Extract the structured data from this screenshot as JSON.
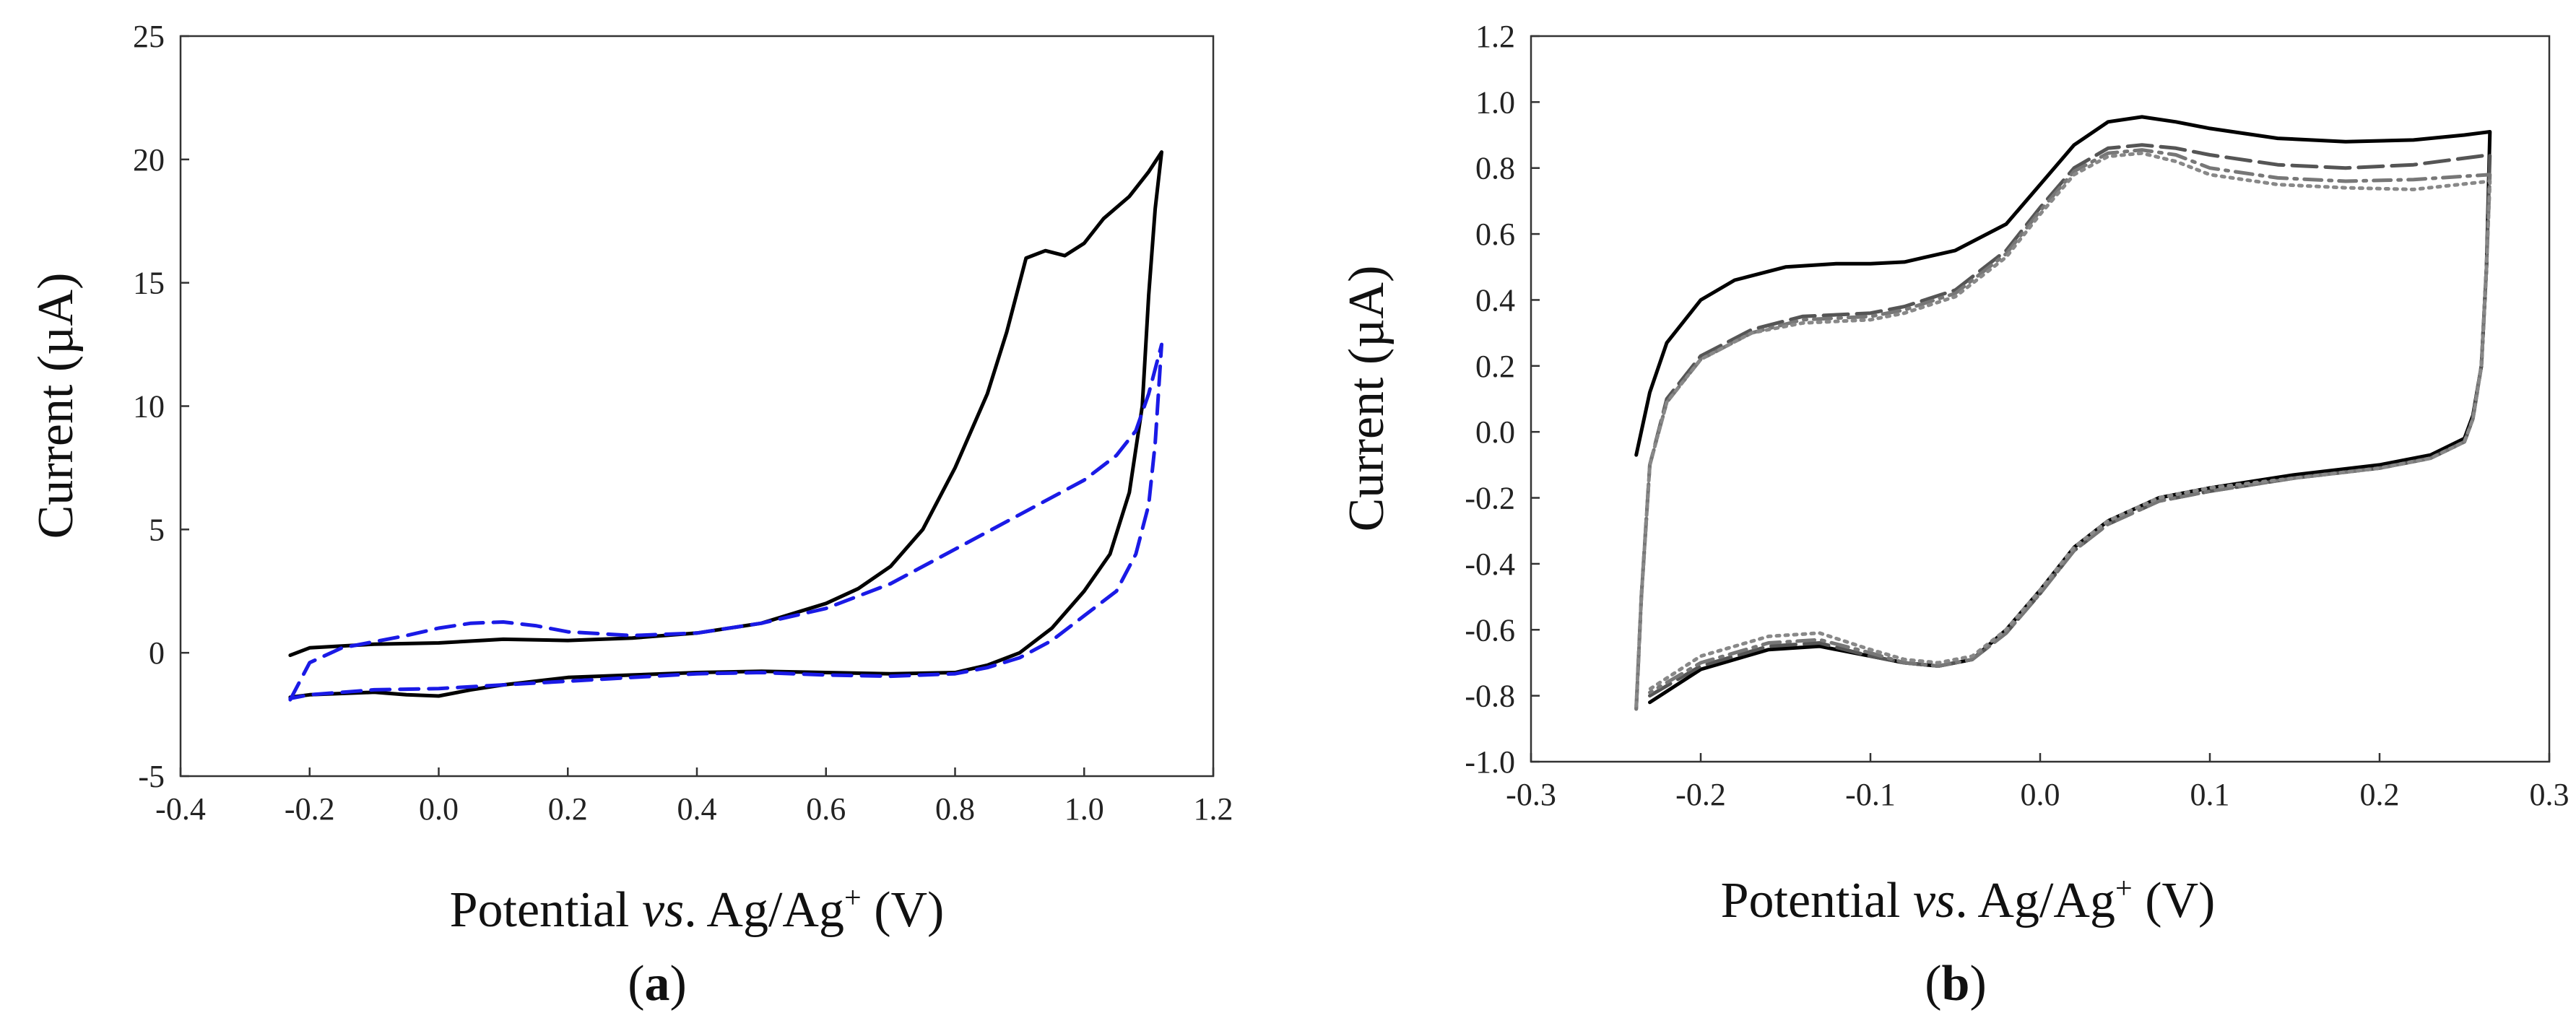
{
  "chart_data": [
    {
      "type": "line",
      "panel_label": "a",
      "ylabel": "Current (µA)",
      "xlabel_parts": [
        "Potential ",
        "vs",
        ". Ag/Ag",
        "+",
        " (V)"
      ],
      "xlim": [
        -0.4,
        1.2
      ],
      "ylim": [
        -5,
        25
      ],
      "xticks": [
        "-0.4",
        "-0.2",
        "0.0",
        "0.2",
        "0.4",
        "0.6",
        "0.8",
        "1.0",
        "1.2"
      ],
      "yticks": [
        "-5",
        "0",
        "5",
        "10",
        "15",
        "20",
        "25"
      ],
      "series": [
        {
          "name": "solid",
          "color": "#000000",
          "style": "solid",
          "points": [
            [
              -0.23,
              -0.1
            ],
            [
              -0.2,
              0.2
            ],
            [
              -0.1,
              0.35
            ],
            [
              0.0,
              0.4
            ],
            [
              0.1,
              0.55
            ],
            [
              0.2,
              0.5
            ],
            [
              0.3,
              0.6
            ],
            [
              0.4,
              0.8
            ],
            [
              0.5,
              1.2
            ],
            [
              0.6,
              2.0
            ],
            [
              0.65,
              2.6
            ],
            [
              0.7,
              3.5
            ],
            [
              0.75,
              5.0
            ],
            [
              0.8,
              7.5
            ],
            [
              0.85,
              10.5
            ],
            [
              0.88,
              13.0
            ],
            [
              0.91,
              16.0
            ],
            [
              0.94,
              16.3
            ],
            [
              0.97,
              16.1
            ],
            [
              1.0,
              16.6
            ],
            [
              1.03,
              17.6
            ],
            [
              1.07,
              18.5
            ],
            [
              1.1,
              19.5
            ],
            [
              1.12,
              20.3
            ],
            [
              1.11,
              18.0
            ],
            [
              1.1,
              14.5
            ],
            [
              1.09,
              10.0
            ],
            [
              1.07,
              6.5
            ],
            [
              1.04,
              4.0
            ],
            [
              1.0,
              2.5
            ],
            [
              0.95,
              1.0
            ],
            [
              0.9,
              0.0
            ],
            [
              0.85,
              -0.5
            ],
            [
              0.8,
              -0.8
            ],
            [
              0.7,
              -0.85
            ],
            [
              0.6,
              -0.8
            ],
            [
              0.5,
              -0.75
            ],
            [
              0.4,
              -0.8
            ],
            [
              0.3,
              -0.9
            ],
            [
              0.2,
              -1.0
            ],
            [
              0.1,
              -1.3
            ],
            [
              0.05,
              -1.5
            ],
            [
              0.0,
              -1.75
            ],
            [
              -0.05,
              -1.7
            ],
            [
              -0.1,
              -1.6
            ],
            [
              -0.2,
              -1.7
            ],
            [
              -0.23,
              -1.8
            ]
          ]
        },
        {
          "name": "dashed",
          "color": "#1a1ae6",
          "style": "dashed",
          "points": [
            [
              -0.23,
              -1.9
            ],
            [
              -0.2,
              -0.4
            ],
            [
              -0.15,
              0.2
            ],
            [
              -0.1,
              0.45
            ],
            [
              -0.05,
              0.7
            ],
            [
              0.0,
              1.0
            ],
            [
              0.05,
              1.2
            ],
            [
              0.1,
              1.25
            ],
            [
              0.15,
              1.1
            ],
            [
              0.2,
              0.85
            ],
            [
              0.3,
              0.7
            ],
            [
              0.4,
              0.8
            ],
            [
              0.5,
              1.2
            ],
            [
              0.6,
              1.8
            ],
            [
              0.7,
              2.8
            ],
            [
              0.8,
              4.2
            ],
            [
              0.9,
              5.6
            ],
            [
              1.0,
              7.0
            ],
            [
              1.05,
              8.0
            ],
            [
              1.08,
              9.0
            ],
            [
              1.1,
              10.5
            ],
            [
              1.12,
              12.5
            ],
            [
              1.11,
              8.5
            ],
            [
              1.1,
              6.0
            ],
            [
              1.08,
              4.0
            ],
            [
              1.05,
              2.5
            ],
            [
              1.0,
              1.5
            ],
            [
              0.95,
              0.5
            ],
            [
              0.9,
              -0.2
            ],
            [
              0.85,
              -0.6
            ],
            [
              0.8,
              -0.85
            ],
            [
              0.7,
              -0.95
            ],
            [
              0.6,
              -0.9
            ],
            [
              0.5,
              -0.8
            ],
            [
              0.4,
              -0.85
            ],
            [
              0.3,
              -1.0
            ],
            [
              0.2,
              -1.15
            ],
            [
              0.1,
              -1.3
            ],
            [
              0.0,
              -1.45
            ],
            [
              -0.1,
              -1.5
            ],
            [
              -0.2,
              -1.7
            ],
            [
              -0.23,
              -1.85
            ]
          ]
        }
      ]
    },
    {
      "type": "line",
      "panel_label": "b",
      "ylabel": "Current (µA)",
      "xlabel_parts": [
        "Potential ",
        "vs",
        ". Ag/Ag",
        "+",
        " (V)"
      ],
      "xlim": [
        -0.3,
        0.3
      ],
      "ylim": [
        -1.0,
        1.2
      ],
      "xticks": [
        "-0.3",
        "-0.2",
        "-0.1",
        "0.0",
        "0.1",
        "0.2",
        "0.3"
      ],
      "yticks": [
        "-1.0",
        "-0.8",
        "-0.6",
        "-0.4",
        "-0.2",
        "0.0",
        "0.2",
        "0.4",
        "0.6",
        "0.8",
        "1.0",
        "1.2"
      ],
      "series": [
        {
          "name": "solid",
          "color": "#000000",
          "style": "solid",
          "points": [
            [
              -0.238,
              -0.07
            ],
            [
              -0.23,
              0.12
            ],
            [
              -0.22,
              0.27
            ],
            [
              -0.2,
              0.4
            ],
            [
              -0.18,
              0.46
            ],
            [
              -0.15,
              0.5
            ],
            [
              -0.12,
              0.51
            ],
            [
              -0.1,
              0.51
            ],
            [
              -0.08,
              0.515
            ],
            [
              -0.05,
              0.55
            ],
            [
              -0.02,
              0.63
            ],
            [
              0.0,
              0.75
            ],
            [
              0.02,
              0.87
            ],
            [
              0.04,
              0.94
            ],
            [
              0.06,
              0.955
            ],
            [
              0.08,
              0.94
            ],
            [
              0.1,
              0.92
            ],
            [
              0.14,
              0.89
            ],
            [
              0.18,
              0.88
            ],
            [
              0.22,
              0.885
            ],
            [
              0.25,
              0.9
            ],
            [
              0.265,
              0.91
            ],
            [
              0.263,
              0.5
            ],
            [
              0.26,
              0.2
            ],
            [
              0.255,
              0.05
            ],
            [
              0.25,
              -0.02
            ],
            [
              0.23,
              -0.07
            ],
            [
              0.2,
              -0.1
            ],
            [
              0.15,
              -0.13
            ],
            [
              0.1,
              -0.17
            ],
            [
              0.07,
              -0.2
            ],
            [
              0.04,
              -0.27
            ],
            [
              0.02,
              -0.35
            ],
            [
              0.0,
              -0.48
            ],
            [
              -0.02,
              -0.6
            ],
            [
              -0.04,
              -0.69
            ],
            [
              -0.06,
              -0.71
            ],
            [
              -0.08,
              -0.7
            ],
            [
              -0.1,
              -0.68
            ],
            [
              -0.13,
              -0.65
            ],
            [
              -0.16,
              -0.66
            ],
            [
              -0.2,
              -0.72
            ],
            [
              -0.23,
              -0.82
            ]
          ]
        },
        {
          "name": "long-dash",
          "color": "#555555",
          "style": "longdash",
          "points": [
            [
              -0.238,
              -0.84
            ],
            [
              -0.235,
              -0.5
            ],
            [
              -0.23,
              -0.1
            ],
            [
              -0.22,
              0.1
            ],
            [
              -0.2,
              0.23
            ],
            [
              -0.17,
              0.31
            ],
            [
              -0.14,
              0.35
            ],
            [
              -0.1,
              0.36
            ],
            [
              -0.08,
              0.38
            ],
            [
              -0.05,
              0.43
            ],
            [
              -0.02,
              0.55
            ],
            [
              0.0,
              0.68
            ],
            [
              0.02,
              0.8
            ],
            [
              0.04,
              0.86
            ],
            [
              0.06,
              0.87
            ],
            [
              0.08,
              0.86
            ],
            [
              0.1,
              0.84
            ],
            [
              0.14,
              0.81
            ],
            [
              0.18,
              0.8
            ],
            [
              0.22,
              0.81
            ],
            [
              0.265,
              0.84
            ],
            [
              0.263,
              0.5
            ],
            [
              0.26,
              0.2
            ],
            [
              0.255,
              0.04
            ],
            [
              0.25,
              -0.03
            ],
            [
              0.23,
              -0.08
            ],
            [
              0.2,
              -0.11
            ],
            [
              0.15,
              -0.14
            ],
            [
              0.1,
              -0.18
            ],
            [
              0.07,
              -0.21
            ],
            [
              0.04,
              -0.28
            ],
            [
              0.02,
              -0.36
            ],
            [
              0.0,
              -0.49
            ],
            [
              -0.02,
              -0.61
            ],
            [
              -0.04,
              -0.69
            ],
            [
              -0.06,
              -0.71
            ],
            [
              -0.08,
              -0.7
            ],
            [
              -0.1,
              -0.68
            ],
            [
              -0.13,
              -0.64
            ],
            [
              -0.16,
              -0.65
            ],
            [
              -0.2,
              -0.71
            ],
            [
              -0.23,
              -0.8
            ]
          ]
        },
        {
          "name": "dash-dot",
          "color": "#777777",
          "style": "dashdot",
          "points": [
            [
              -0.238,
              -0.84
            ],
            [
              -0.235,
              -0.5
            ],
            [
              -0.23,
              -0.1
            ],
            [
              -0.22,
              0.09
            ],
            [
              -0.2,
              0.22
            ],
            [
              -0.17,
              0.3
            ],
            [
              -0.14,
              0.34
            ],
            [
              -0.1,
              0.35
            ],
            [
              -0.08,
              0.37
            ],
            [
              -0.05,
              0.42
            ],
            [
              -0.02,
              0.54
            ],
            [
              0.0,
              0.67
            ],
            [
              0.02,
              0.79
            ],
            [
              0.04,
              0.845
            ],
            [
              0.06,
              0.855
            ],
            [
              0.08,
              0.84
            ],
            [
              0.1,
              0.8
            ],
            [
              0.14,
              0.77
            ],
            [
              0.18,
              0.76
            ],
            [
              0.22,
              0.765
            ],
            [
              0.265,
              0.78
            ],
            [
              0.263,
              0.5
            ],
            [
              0.26,
              0.2
            ],
            [
              0.255,
              0.04
            ],
            [
              0.25,
              -0.03
            ],
            [
              0.23,
              -0.08
            ],
            [
              0.2,
              -0.11
            ],
            [
              0.15,
              -0.14
            ],
            [
              0.1,
              -0.18
            ],
            [
              0.07,
              -0.21
            ],
            [
              0.04,
              -0.28
            ],
            [
              0.02,
              -0.36
            ],
            [
              0.0,
              -0.49
            ],
            [
              -0.02,
              -0.61
            ],
            [
              -0.04,
              -0.69
            ],
            [
              -0.06,
              -0.71
            ],
            [
              -0.08,
              -0.7
            ],
            [
              -0.1,
              -0.67
            ],
            [
              -0.13,
              -0.63
            ],
            [
              -0.16,
              -0.64
            ],
            [
              -0.2,
              -0.7
            ],
            [
              -0.23,
              -0.79
            ]
          ]
        },
        {
          "name": "dotted",
          "color": "#888888",
          "style": "dotted",
          "points": [
            [
              -0.238,
              -0.83
            ],
            [
              -0.235,
              -0.5
            ],
            [
              -0.23,
              -0.1
            ],
            [
              -0.22,
              0.09
            ],
            [
              -0.2,
              0.22
            ],
            [
              -0.17,
              0.3
            ],
            [
              -0.14,
              0.33
            ],
            [
              -0.1,
              0.34
            ],
            [
              -0.08,
              0.36
            ],
            [
              -0.05,
              0.41
            ],
            [
              -0.02,
              0.53
            ],
            [
              0.0,
              0.66
            ],
            [
              0.02,
              0.78
            ],
            [
              0.04,
              0.835
            ],
            [
              0.06,
              0.845
            ],
            [
              0.08,
              0.82
            ],
            [
              0.1,
              0.78
            ],
            [
              0.14,
              0.75
            ],
            [
              0.18,
              0.74
            ],
            [
              0.22,
              0.735
            ],
            [
              0.265,
              0.76
            ],
            [
              0.263,
              0.5
            ],
            [
              0.26,
              0.2
            ],
            [
              0.255,
              0.04
            ],
            [
              0.25,
              -0.03
            ],
            [
              0.23,
              -0.08
            ],
            [
              0.2,
              -0.11
            ],
            [
              0.15,
              -0.14
            ],
            [
              0.1,
              -0.17
            ],
            [
              0.07,
              -0.2
            ],
            [
              0.04,
              -0.27
            ],
            [
              0.02,
              -0.35
            ],
            [
              0.0,
              -0.48
            ],
            [
              -0.02,
              -0.6
            ],
            [
              -0.04,
              -0.68
            ],
            [
              -0.06,
              -0.7
            ],
            [
              -0.08,
              -0.69
            ],
            [
              -0.1,
              -0.66
            ],
            [
              -0.13,
              -0.61
            ],
            [
              -0.16,
              -0.62
            ],
            [
              -0.2,
              -0.68
            ],
            [
              -0.23,
              -0.78
            ]
          ]
        }
      ]
    }
  ]
}
